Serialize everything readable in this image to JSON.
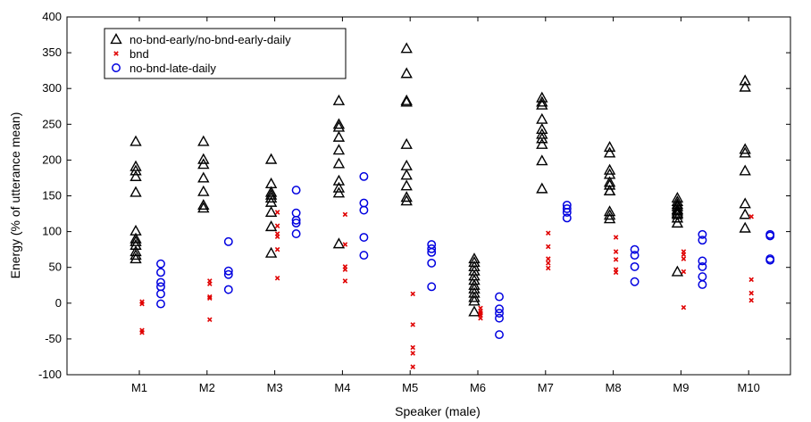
{
  "chart_data": {
    "type": "scatter",
    "title": "",
    "xlabel": "Speaker (male)",
    "ylabel": "Energy (% of utterance mean)",
    "ylim": [
      -100,
      400
    ],
    "yticks": [
      -100,
      -50,
      0,
      50,
      100,
      150,
      200,
      250,
      300,
      350,
      400
    ],
    "categories": [
      "M1",
      "M2",
      "M3",
      "M4",
      "M5",
      "M6",
      "M7",
      "M8",
      "M9",
      "M10"
    ],
    "grid": false,
    "legend_position": "top-left",
    "series": [
      {
        "name": "no-bnd-early/no-bnd-early-daily",
        "marker": "triangle",
        "color": "#000000",
        "values": [
          [
            226,
            191,
            185,
            177,
            155,
            101,
            90,
            86,
            81,
            72,
            67,
            62
          ],
          [
            226,
            201,
            194,
            175,
            156,
            137,
            133
          ],
          [
            201,
            167,
            155,
            151,
            147,
            141,
            127,
            107,
            70
          ],
          [
            283,
            250,
            246,
            232,
            214,
            195,
            171,
            161,
            154,
            83
          ],
          [
            356,
            321,
            283,
            281,
            222,
            192,
            179,
            164,
            148,
            143
          ],
          [
            62,
            57,
            51,
            45,
            38,
            32,
            25,
            20,
            14,
            8,
            3,
            -12
          ],
          [
            287,
            281,
            277,
            257,
            243,
            236,
            230,
            222,
            199,
            160
          ],
          [
            218,
            210,
            186,
            180,
            169,
            165,
            157,
            157,
            128,
            123,
            118
          ],
          [
            147,
            142,
            138,
            135,
            131,
            129,
            126,
            124,
            119,
            112,
            44
          ],
          [
            311,
            302,
            215,
            210,
            185,
            139,
            124,
            105
          ]
        ]
      },
      {
        "name": "bnd",
        "marker": "x",
        "color": "#e00000",
        "values": [
          [
            2,
            -1,
            -38,
            -41
          ],
          [
            31,
            27,
            9,
            7,
            -23
          ],
          [
            127,
            108,
            97,
            93,
            75,
            35
          ],
          [
            124,
            82,
            51,
            47,
            31
          ],
          [
            13,
            -30,
            -62,
            -70,
            -89
          ],
          [
            -7,
            -11,
            -14,
            -17,
            -21
          ],
          [
            98,
            79,
            62,
            56,
            49
          ],
          [
            92,
            72,
            61,
            47,
            43
          ],
          [
            72,
            68,
            62,
            44,
            -6
          ],
          [
            121,
            33,
            14,
            4
          ]
        ]
      },
      {
        "name": "no-bnd-late-daily",
        "marker": "circle",
        "color": "#0000e0",
        "values": [
          [
            55,
            43,
            29,
            23,
            13,
            -1
          ],
          [
            86,
            45,
            40,
            19
          ],
          [
            158,
            126,
            116,
            112,
            97
          ],
          [
            177,
            140,
            130,
            92,
            67
          ],
          [
            82,
            76,
            71,
            56,
            23
          ],
          [
            9,
            -8,
            -14,
            -21,
            -44
          ],
          [
            137,
            132,
            127,
            119
          ],
          [
            75,
            67,
            51,
            30
          ],
          [
            96,
            88,
            59,
            51,
            37,
            26
          ],
          [
            96,
            94,
            62,
            60
          ]
        ]
      }
    ]
  }
}
